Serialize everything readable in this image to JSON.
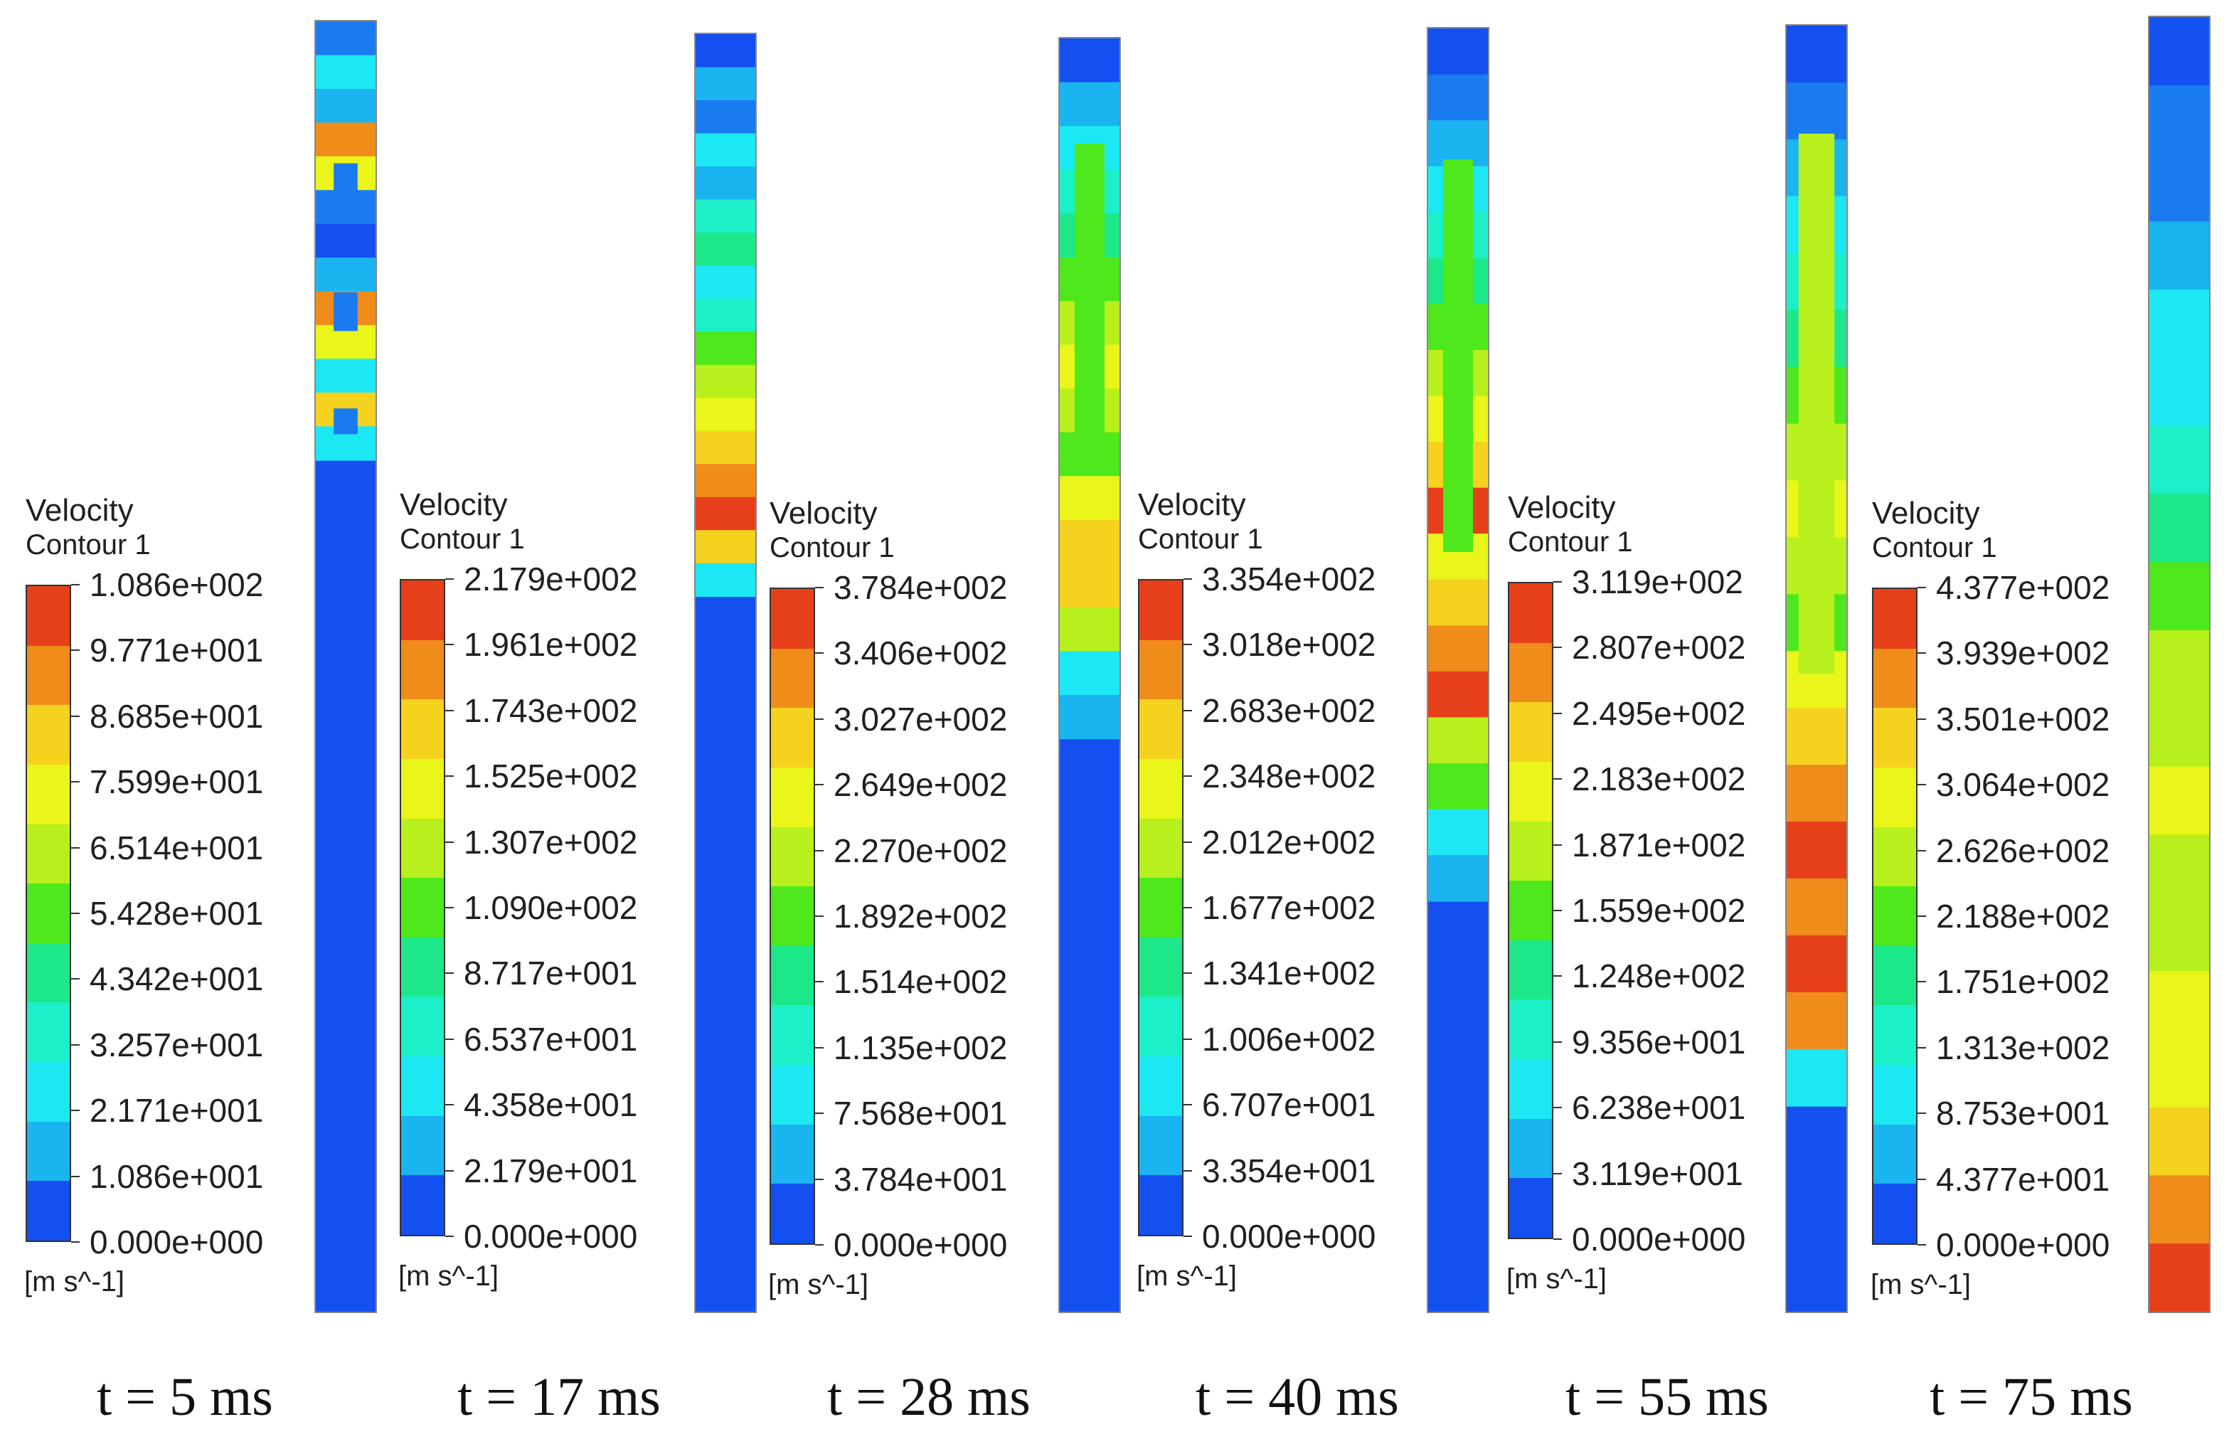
{
  "figure": {
    "colormap": [
      "#e6401a",
      "#f08c1a",
      "#f4d21e",
      "#eaf519",
      "#b7f01c",
      "#4ee81c",
      "#1ce88a",
      "#1cf0c8",
      "#1ce8f4",
      "#1ab4f0",
      "#1a7af0",
      "#1450f0"
    ],
    "panels": [
      {
        "legend_title": "Velocity",
        "legend_subtitle": "Contour 1",
        "ticks": [
          "1.086e+002",
          "9.771e+001",
          "8.685e+001",
          "7.599e+001",
          "6.514e+001",
          "5.428e+001",
          "4.342e+001",
          "3.257e+001",
          "2.171e+001",
          "1.086e+001",
          "0.000e+000"
        ],
        "unit": "[m s^-1]",
        "time": "t = 5 ms",
        "front_fraction": 0.34
      },
      {
        "legend_title": "Velocity",
        "legend_subtitle": "Contour 1",
        "ticks": [
          "2.179e+002",
          "1.961e+002",
          "1.743e+002",
          "1.525e+002",
          "1.307e+002",
          "1.090e+002",
          "8.717e+001",
          "6.537e+001",
          "4.358e+001",
          "2.179e+001",
          "0.000e+000"
        ],
        "unit": "[m s^-1]",
        "time": "t = 17 ms",
        "front_fraction": 0.44
      },
      {
        "legend_title": "Velocity",
        "legend_subtitle": "Contour 1",
        "ticks": [
          "3.784e+002",
          "3.406e+002",
          "3.027e+002",
          "2.649e+002",
          "2.270e+002",
          "1.892e+002",
          "1.514e+002",
          "1.135e+002",
          "7.568e+001",
          "3.784e+001",
          "0.000e+000"
        ],
        "unit": "[m s^-1]",
        "time": "t = 28 ms",
        "front_fraction": 0.55
      },
      {
        "legend_title": "Velocity",
        "legend_subtitle": "Contour 1",
        "ticks": [
          "3.354e+002",
          "3.018e+002",
          "2.683e+002",
          "2.348e+002",
          "2.012e+002",
          "1.677e+002",
          "1.341e+002",
          "1.006e+002",
          "6.707e+001",
          "3.354e+001",
          "0.000e+000"
        ],
        "unit": "[m s^-1]",
        "time": "t = 40 ms",
        "front_fraction": 0.68
      },
      {
        "legend_title": "Velocity",
        "legend_subtitle": "Contour 1",
        "ticks": [
          "3.119e+002",
          "2.807e+002",
          "2.495e+002",
          "2.183e+002",
          "1.871e+002",
          "1.559e+002",
          "1.248e+002",
          "9.356e+001",
          "6.238e+001",
          "3.119e+001",
          "0.000e+000"
        ],
        "unit": "[m s^-1]",
        "time": "t = 55 ms",
        "front_fraction": 0.84
      },
      {
        "legend_title": "Velocity",
        "legend_subtitle": "Contour 1",
        "ticks": [
          "4.377e+002",
          "3.939e+002",
          "3.501e+002",
          "3.064e+002",
          "2.626e+002",
          "2.188e+002",
          "1.751e+002",
          "1.313e+002",
          "8.753e+001",
          "4.377e+001",
          "0.000e+000"
        ],
        "unit": "[m s^-1]",
        "time": "t = 75 ms",
        "front_fraction": 1.0
      }
    ]
  }
}
